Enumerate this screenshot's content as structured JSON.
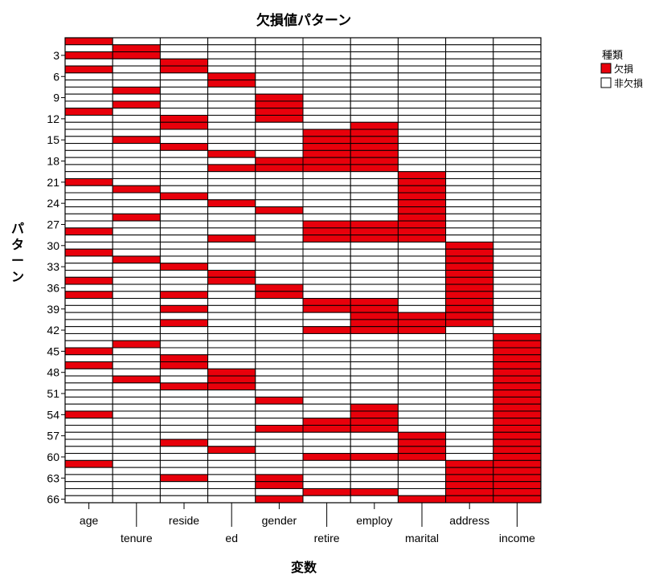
{
  "chart_data": {
    "type": "heatmap",
    "title": "欠損値パターン",
    "xlabel": "変数",
    "ylabel": "パターン",
    "variables": [
      "age",
      "tenure",
      "reside",
      "ed",
      "gender",
      "retire",
      "employ",
      "marital",
      "address",
      "income"
    ],
    "pattern_count": 66,
    "y_tick_labels": [
      "3",
      "6",
      "9",
      "12",
      "15",
      "18",
      "21",
      "24",
      "27",
      "30",
      "33",
      "36",
      "39",
      "42",
      "45",
      "48",
      "51",
      "54",
      "57",
      "60",
      "63",
      "66"
    ],
    "legend": {
      "title": "種類",
      "items": [
        {
          "label": "欠損",
          "color": "#e8000b"
        },
        {
          "label": "非欠損",
          "color": "#ffffff"
        }
      ]
    },
    "missing_rows": {
      "age": [
        1,
        3,
        5,
        11,
        21,
        28,
        31,
        35,
        37,
        45,
        47,
        54,
        61
      ],
      "tenure": [
        2,
        3,
        8,
        10,
        15,
        22,
        26,
        32,
        44,
        49
      ],
      "reside": [
        4,
        5,
        12,
        13,
        16,
        23,
        33,
        37,
        39,
        41,
        46,
        47,
        50,
        58,
        63
      ],
      "ed": [
        6,
        7,
        17,
        19,
        24,
        29,
        34,
        35,
        48,
        49,
        50,
        59
      ],
      "gender": [
        9,
        10,
        11,
        12,
        18,
        19,
        25,
        36,
        37,
        52,
        56,
        63,
        64,
        66
      ],
      "retire": [
        14,
        15,
        16,
        17,
        18,
        19,
        27,
        28,
        29,
        38,
        39,
        42,
        55,
        56,
        60,
        65
      ],
      "employ": [
        13,
        14,
        15,
        16,
        17,
        18,
        19,
        27,
        28,
        29,
        38,
        39,
        40,
        41,
        42,
        53,
        54,
        55,
        56,
        60,
        65
      ],
      "marital": [
        20,
        21,
        22,
        23,
        24,
        25,
        26,
        27,
        28,
        29,
        40,
        41,
        42,
        57,
        58,
        59,
        60,
        66
      ],
      "address": [
        30,
        31,
        32,
        33,
        34,
        35,
        36,
        37,
        38,
        39,
        40,
        41,
        61,
        62,
        63,
        64,
        65,
        66
      ],
      "income": [
        43,
        44,
        45,
        46,
        47,
        48,
        49,
        50,
        51,
        52,
        53,
        54,
        55,
        56,
        57,
        58,
        59,
        60,
        61,
        62,
        63,
        64,
        65,
        66
      ]
    }
  }
}
